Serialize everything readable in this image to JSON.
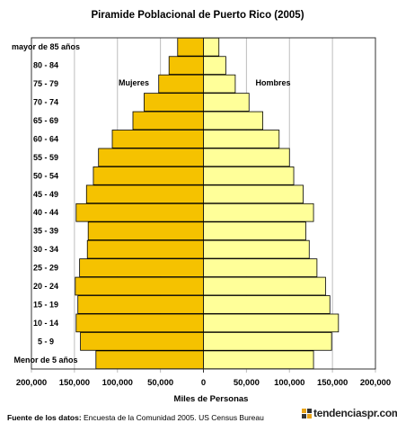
{
  "chart_data": {
    "type": "bar",
    "orientation": "horizontal-population-pyramid",
    "title": "Piramide Poblacional de Puerto Rico (2005)",
    "xlabel": "Miles de Personas",
    "ylabel": "",
    "categories": [
      "Menor de 5 años",
      "5 - 9",
      "10 - 14",
      "15 - 19",
      "20 - 24",
      "25 - 29",
      "30 - 34",
      "35 - 39",
      "40 - 44",
      "45 - 49",
      "50 - 54",
      "55 - 59",
      "60 - 64",
      "65 - 69",
      "70 - 74",
      "75 - 79",
      "80 - 84",
      "mayor de 85 años"
    ],
    "series": [
      {
        "name": "Mujeres",
        "color": "#f5c200",
        "values": [
          125000,
          143000,
          148000,
          146000,
          149000,
          144000,
          135000,
          134000,
          148000,
          136000,
          128000,
          122000,
          106000,
          82000,
          69000,
          52000,
          40000,
          30000
        ]
      },
      {
        "name": "Hombres",
        "color": "#ffff99",
        "values": [
          128000,
          149000,
          157000,
          147000,
          142000,
          132000,
          123000,
          119000,
          128000,
          116000,
          105000,
          100000,
          88000,
          69000,
          53000,
          37000,
          26000,
          18000
        ]
      }
    ],
    "xlim": [
      -200000,
      200000
    ],
    "xticks": [
      -200000,
      -150000,
      -100000,
      -50000,
      0,
      50000,
      100000,
      150000,
      200000
    ],
    "xtick_labels": [
      "200,000",
      "150,000",
      "100,000",
      "50,000",
      "0",
      "50,000",
      "100,000",
      "150,000",
      "200,000"
    ],
    "grid": "vertical",
    "legend": "inside-top"
  },
  "footer": {
    "source_label": "Fuente de los datos:",
    "source_text": " Encuesta de la Comunidad 2005.  US Census Bureau"
  },
  "logo": {
    "text": "tendenciaspr.com"
  }
}
